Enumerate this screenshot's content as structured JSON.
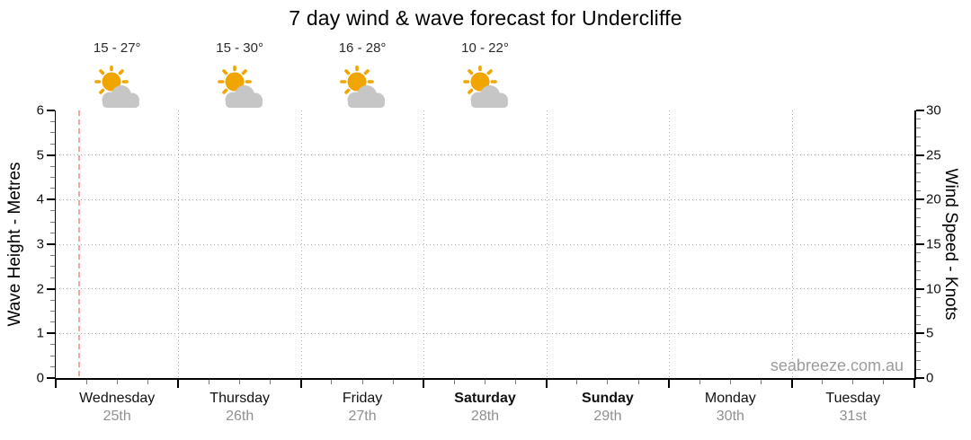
{
  "title": "7 day wind & wave forecast for Undercliffe",
  "watermark": "seabreeze.com.au",
  "left_axis": {
    "label": "Wave Height - Metres",
    "ticks": [
      0,
      1,
      2,
      3,
      4,
      5,
      6
    ]
  },
  "right_axis": {
    "label": "Wind Speed - Knots",
    "ticks": [
      0,
      5,
      10,
      15,
      20,
      25,
      30
    ]
  },
  "days": [
    {
      "name": "Wednesday",
      "date": "25th",
      "weekend": false,
      "temp": "15 - 27°",
      "icon": "sun-behind-cloud"
    },
    {
      "name": "Thursday",
      "date": "26th",
      "weekend": false,
      "temp": "15 - 30°",
      "icon": "sun-behind-cloud"
    },
    {
      "name": "Friday",
      "date": "27th",
      "weekend": false,
      "temp": "16 - 28°",
      "icon": "sun-behind-cloud"
    },
    {
      "name": "Saturday",
      "date": "28th",
      "weekend": true,
      "temp": "10 - 22°",
      "icon": "sun-behind-cloud"
    },
    {
      "name": "Sunday",
      "date": "29th",
      "weekend": true,
      "temp": null,
      "icon": null
    },
    {
      "name": "Monday",
      "date": "30th",
      "weekend": false,
      "temp": null,
      "icon": null
    },
    {
      "name": "Tuesday",
      "date": "31st",
      "weekend": false,
      "temp": null,
      "icon": null
    }
  ],
  "colors": {
    "sun": "#F0A500",
    "cloud": "#C6C6C6",
    "now_line": "#F2A6A6",
    "grid": "#ADADAD",
    "date_text": "#909090",
    "watermark_text": "#9C9C9C"
  },
  "chart_data": {
    "type": "line",
    "title": "7 day wind & wave forecast for Undercliffe",
    "x_categories": [
      "Wednesday 25th",
      "Thursday 26th",
      "Friday 27th",
      "Saturday 28th",
      "Sunday 29th",
      "Monday 30th",
      "Tuesday 31st"
    ],
    "left_axis": {
      "label": "Wave Height - Metres",
      "range": [
        0,
        6
      ],
      "major_tick_step": 1,
      "minor_tick_step": 0.25
    },
    "right_axis": {
      "label": "Wind Speed - Knots",
      "range": [
        0,
        30
      ],
      "major_tick_step": 5,
      "minor_tick_step": 1
    },
    "series": [],
    "grid": true,
    "legend": false,
    "annotations": {
      "temperature_ranges": [
        {
          "day": "Wednesday",
          "label": "15 - 27°"
        },
        {
          "day": "Thursday",
          "label": "15 - 30°"
        },
        {
          "day": "Friday",
          "label": "16 - 28°"
        },
        {
          "day": "Saturday",
          "label": "10 - 22°"
        }
      ],
      "weather_icons": [
        {
          "day": "Wednesday",
          "icon": "sun-behind-cloud"
        },
        {
          "day": "Thursday",
          "icon": "sun-behind-cloud"
        },
        {
          "day": "Friday",
          "icon": "sun-behind-cloud"
        },
        {
          "day": "Saturday",
          "icon": "sun-behind-cloud"
        }
      ],
      "now_marker": {
        "style": "dashed-pink-vertical-line",
        "position": "early Wednesday 25th"
      },
      "watermark": "seabreeze.com.au"
    }
  }
}
